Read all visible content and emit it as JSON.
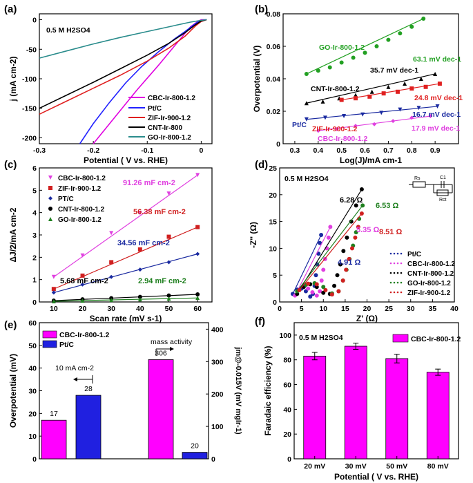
{
  "chart_data": [
    {
      "panel": "(a)",
      "type": "line",
      "annotation": "0.5 M H2SO4",
      "xlabel": "Potential ( V vs. RHE)",
      "ylabel": "j (mA cm-2)",
      "xlim": [
        -0.3,
        0.02
      ],
      "ylim": [
        -210,
        10
      ],
      "xticks": [
        -0.3,
        -0.2,
        -0.1,
        0.0
      ],
      "yticks": [
        -200,
        -150,
        -100,
        -50,
        0
      ],
      "series": [
        {
          "name": "CBC-Ir-800-1.2",
          "color": "#e000e0",
          "x": [
            -0.2,
            -0.16,
            -0.12,
            -0.08,
            -0.05,
            -0.02,
            -0.005,
            0.0,
            0.01
          ],
          "y": [
            -210,
            -165,
            -120,
            -78,
            -45,
            -12,
            -2,
            0,
            0
          ]
        },
        {
          "name": "Pt/C",
          "color": "#2020ff",
          "x": [
            -0.225,
            -0.2,
            -0.17,
            -0.14,
            -0.11,
            -0.08,
            -0.05,
            -0.03,
            -0.01,
            0.0,
            0.01
          ],
          "y": [
            -210,
            -176,
            -140,
            -107,
            -79,
            -55,
            -33,
            -20,
            -6,
            -1,
            0
          ]
        },
        {
          "name": "ZIF-Ir-900-1.2",
          "color": "#e02020",
          "x": [
            -0.3,
            -0.25,
            -0.2,
            -0.15,
            -0.1,
            -0.06,
            -0.03,
            -0.01,
            0.0,
            0.01
          ],
          "y": [
            -160,
            -138,
            -116,
            -94,
            -70,
            -48,
            -28,
            -10,
            -3,
            0
          ]
        },
        {
          "name": "CNT-Ir-800",
          "color": "#000000",
          "x": [
            -0.3,
            -0.25,
            -0.2,
            -0.15,
            -0.1,
            -0.06,
            -0.03,
            -0.01,
            0.0,
            0.01
          ],
          "y": [
            -150,
            -128,
            -106,
            -83,
            -60,
            -40,
            -22,
            -8,
            -2,
            0
          ]
        },
        {
          "name": "GO-Ir-800-1.2",
          "color": "#2a8c8c",
          "x": [
            -0.3,
            -0.25,
            -0.2,
            -0.15,
            -0.1,
            -0.05,
            -0.02,
            0.0,
            0.01
          ],
          "y": [
            -65,
            -53,
            -41,
            -30,
            -20,
            -10,
            -4,
            -1,
            0
          ]
        }
      ]
    },
    {
      "panel": "(b)",
      "type": "scatter",
      "xlabel": "Log(J)/mA cm-1",
      "ylabel": "Overpotential (V)",
      "xlim": [
        0.25,
        1.0
      ],
      "ylim": [
        0.0,
        0.08
      ],
      "xticks": [
        0.3,
        0.4,
        0.5,
        0.6,
        0.7,
        0.8,
        0.9
      ],
      "yticks": [
        0.0,
        0.02,
        0.04,
        0.06,
        0.08
      ],
      "series": [
        {
          "name": "GO-Ir-800-1.2",
          "color": "#22a022",
          "marker": "circle",
          "tafel": "63.1 mV dec-1",
          "x": [
            0.35,
            0.4,
            0.45,
            0.5,
            0.55,
            0.6,
            0.65,
            0.7,
            0.75,
            0.8,
            0.85
          ],
          "y": [
            0.043,
            0.045,
            0.047,
            0.05,
            0.053,
            0.056,
            0.06,
            0.064,
            0.068,
            0.072,
            0.077
          ]
        },
        {
          "name": "CNT-Ir-800-1.2",
          "color": "#000000",
          "marker": "triangle",
          "tafel": "35.7 mV dec-1",
          "x": [
            0.35,
            0.42,
            0.49,
            0.56,
            0.63,
            0.7,
            0.77,
            0.84,
            0.9
          ],
          "y": [
            0.025,
            0.026,
            0.028,
            0.03,
            0.032,
            0.035,
            0.037,
            0.04,
            0.043
          ]
        },
        {
          "name": "ZIF-Ir-900-1.2",
          "color": "#e02020",
          "marker": "square",
          "tafel": "24.8 mV dec-1",
          "x": [
            0.5,
            0.56,
            0.62,
            0.68,
            0.74,
            0.8,
            0.86,
            0.92
          ],
          "y": [
            0.027,
            0.028,
            0.029,
            0.031,
            0.032,
            0.034,
            0.035,
            0.037
          ]
        },
        {
          "name": "Pt/C",
          "color": "#1a2aa0",
          "marker": "triangle-down",
          "tafel": "16.7 mV dec-1",
          "x": [
            0.35,
            0.43,
            0.51,
            0.59,
            0.67,
            0.75,
            0.83,
            0.91
          ],
          "y": [
            0.015,
            0.016,
            0.017,
            0.018,
            0.019,
            0.021,
            0.022,
            0.023
          ]
        },
        {
          "name": "CBC-Ir-800-1.2",
          "color": "#e040e0",
          "marker": "diamond",
          "tafel": "17.9 mV dec-1",
          "x": [
            0.4,
            0.48,
            0.56,
            0.64,
            0.72,
            0.8,
            0.88
          ],
          "y": [
            0.008,
            0.009,
            0.011,
            0.012,
            0.014,
            0.016,
            0.017
          ]
        }
      ]
    },
    {
      "panel": "(c)",
      "type": "scatter",
      "xlabel": "Scan rate (mV s-1)",
      "ylabel": "ΔJ/2/mA cm-2",
      "xlim": [
        5,
        65
      ],
      "ylim": [
        0,
        6
      ],
      "xticks": [
        10,
        20,
        30,
        40,
        50,
        60
      ],
      "yticks": [
        0,
        1,
        2,
        3,
        4,
        5,
        6
      ],
      "series": [
        {
          "name": "CBC-Ir-800-1.2",
          "color": "#e040e0",
          "marker": "triangle-down",
          "capacitance": "91.26 mF cm-2",
          "x": [
            10,
            20,
            30,
            40,
            50,
            60
          ],
          "y": [
            1.12,
            2.08,
            3.08,
            3.98,
            4.85,
            5.68
          ]
        },
        {
          "name": "ZIF-Ir-900-1.2",
          "color": "#d02020",
          "marker": "square",
          "capacitance": "56.38 mF cm-2",
          "x": [
            10,
            20,
            30,
            40,
            50,
            60
          ],
          "y": [
            0.58,
            1.18,
            1.78,
            2.35,
            2.92,
            3.35
          ]
        },
        {
          "name": "PT/C",
          "color": "#1a2aa0",
          "marker": "diamond",
          "capacitance": "34.56 mF cm-2",
          "x": [
            10,
            20,
            30,
            40,
            50,
            60
          ],
          "y": [
            0.42,
            0.78,
            1.12,
            1.45,
            1.78,
            2.15
          ]
        },
        {
          "name": "CNT-Ir-800-1.2",
          "color": "#000000",
          "marker": "circle",
          "capacitance": "5.68 mF cm-2",
          "x": [
            10,
            20,
            30,
            40,
            50,
            60
          ],
          "y": [
            0.06,
            0.12,
            0.17,
            0.23,
            0.29,
            0.34
          ]
        },
        {
          "name": "GO-Ir-800-1.2",
          "color": "#208020",
          "marker": "triangle",
          "capacitance": "2.94 mF cm-2",
          "x": [
            10,
            20,
            30,
            40,
            50,
            60
          ],
          "y": [
            0.03,
            0.06,
            0.09,
            0.12,
            0.15,
            0.18
          ]
        }
      ]
    },
    {
      "panel": "(d)",
      "type": "scatter",
      "annotation": "0.5 M H2SO4",
      "circuit_labels": [
        "Rs",
        "C1",
        "Rct"
      ],
      "xlabel": "Z' (Ω)",
      "ylabel": "-Z'' (Ω)",
      "xlim": [
        0,
        40
      ],
      "ylim": [
        0,
        25
      ],
      "xticks": [
        0,
        5,
        10,
        15,
        20,
        25,
        30,
        35,
        40
      ],
      "yticks": [
        0,
        5,
        10,
        15,
        20,
        25
      ],
      "series": [
        {
          "name": "Pt/C",
          "color": "#1a2aa0",
          "resistance": "4.91 Ω",
          "x": [
            3,
            4,
            5,
            6,
            7,
            7.6,
            8.0,
            8.3,
            8.6,
            8.9,
            9.2,
            9.5
          ],
          "y": [
            1.5,
            2.3,
            2.5,
            2.0,
            1.0,
            1.5,
            3,
            5,
            7,
            9,
            11,
            12.5
          ]
        },
        {
          "name": "CBC-Ir-800-1.2",
          "color": "#e040e0",
          "resistance": "5.35 Ω",
          "x": [
            3.5,
            4.5,
            5.5,
            6.5,
            7.5,
            8.5,
            9.2,
            9.6,
            10.0,
            10.4,
            10.8,
            11.2,
            11.6
          ],
          "y": [
            1.2,
            2.2,
            2.8,
            2.5,
            1.8,
            1.2,
            2,
            4,
            6,
            8,
            10,
            12,
            14
          ]
        },
        {
          "name": "CNT-Ir-800-1.2",
          "color": "#000000",
          "resistance": "6.28 Ω",
          "x": [
            4,
            5.5,
            7,
            8.5,
            10,
            11.5,
            12.5,
            13.2,
            13.9,
            14.6,
            15.4,
            16.4,
            17.5,
            18.8
          ],
          "y": [
            1.5,
            2.8,
            3.3,
            2.8,
            1.7,
            1.5,
            3,
            5,
            7,
            9.5,
            12,
            15,
            18,
            21
          ]
        },
        {
          "name": "GO-Ir-800-1.2",
          "color": "#208020",
          "resistance": "6.53 Ω",
          "x": [
            4,
            6,
            8,
            10,
            12,
            13.5,
            14.5,
            15.3,
            16,
            16.8,
            17.5,
            18.2,
            19
          ],
          "y": [
            2,
            3.2,
            3.5,
            2.8,
            1.6,
            2,
            4,
            6,
            8,
            10.5,
            13,
            15.5,
            18
          ]
        },
        {
          "name": "ZIF-Ir-900-1.2",
          "color": "#d02020",
          "resistance": "8.51 Ω",
          "x": [
            4.5,
            6.5,
            8.5,
            10.5,
            12,
            13.5,
            14.5,
            15.2,
            15.9,
            16.6,
            17.3,
            18.0,
            18.8
          ],
          "y": [
            2.2,
            3.4,
            3.3,
            2.2,
            1.4,
            2,
            4,
            6,
            8,
            10,
            12,
            14,
            16.5
          ]
        }
      ]
    },
    {
      "panel": "(e)",
      "type": "bar",
      "annotations": [
        "10 mA cm-2",
        "mass activity"
      ],
      "xlabel": "",
      "ylabel": "Overpotential (mV)",
      "ylabel_right": "jm@-0.015V (mV mgIr-1)",
      "ylim": [
        0,
        60
      ],
      "ylim_right": [
        0,
        420
      ],
      "yticks": [
        0,
        10,
        20,
        30,
        40,
        50,
        60
      ],
      "yticks_right": [
        0,
        100,
        200,
        300,
        400
      ],
      "legend": [
        {
          "name": "CBC-Ir-800-1.2",
          "color": "#ff00ff"
        },
        {
          "name": "Pt/C",
          "color": "#2020e0"
        }
      ],
      "bars": [
        {
          "group": "overpotential",
          "series": "CBC-Ir-800-1.2",
          "value": 17,
          "label": "17",
          "axis": "left"
        },
        {
          "group": "overpotential",
          "series": "Pt/C",
          "value": 28,
          "label": "28",
          "axis": "left"
        },
        {
          "group": "mass-activity",
          "series": "CBC-Ir-800-1.2",
          "value": 306,
          "label": "306",
          "axis": "right"
        },
        {
          "group": "mass-activity",
          "series": "Pt/C",
          "value": 20,
          "label": "20",
          "axis": "right"
        }
      ]
    },
    {
      "panel": "(f)",
      "type": "bar",
      "annotation": "0.5 M H2SO4",
      "xlabel": "Potential ( V vs. RHE)",
      "ylabel": "Faradaic efficiency (%)",
      "ylim": [
        0,
        110
      ],
      "yticks": [
        0,
        20,
        40,
        60,
        80,
        100
      ],
      "legend": [
        {
          "name": "CBC-Ir-800-1.2",
          "color": "#ff00ff"
        }
      ],
      "categories": [
        "20 mV",
        "30 mV",
        "50 mV",
        "80 mV"
      ],
      "values": [
        83,
        91,
        81,
        70
      ],
      "errors": [
        3,
        2.5,
        3.5,
        2.5
      ]
    }
  ]
}
